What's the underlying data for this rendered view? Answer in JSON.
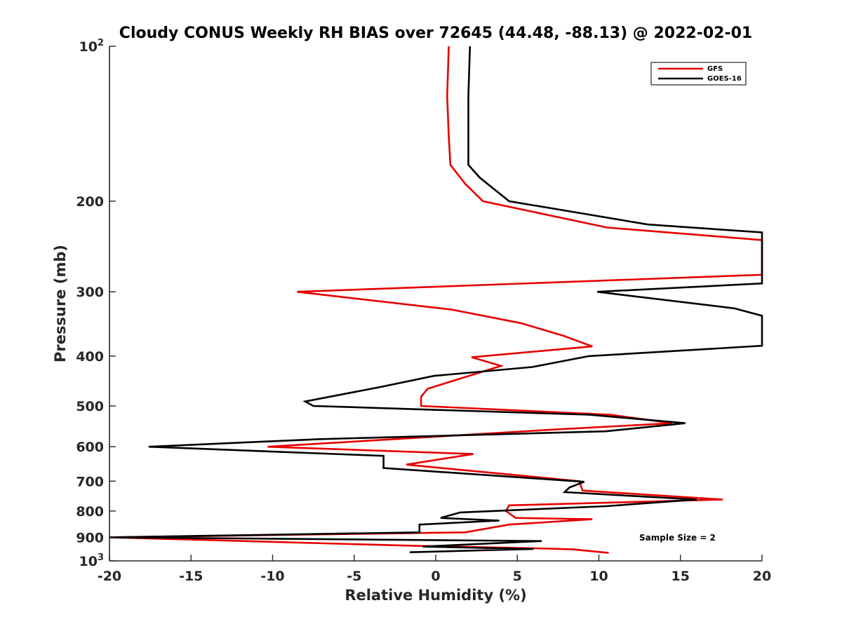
{
  "chart_data": {
    "type": "line",
    "title": "Cloudy CONUS Weekly RH BIAS over 72645 (44.48, -88.13) @ 2022-02-01",
    "xlabel": "Relative Humidity (%)",
    "ylabel": "Pressure (mb)",
    "xlim": [
      -20,
      20
    ],
    "ylim": [
      100,
      1000
    ],
    "yscale": "log",
    "y_reversed": true,
    "grid": false,
    "legend_position": "top-right",
    "x_ticks": [
      "-20",
      "-15",
      "-10",
      "-5",
      "0",
      "5",
      "10",
      "15",
      "20"
    ],
    "y_ticks": [
      {
        "value": 100,
        "base": "10",
        "exp": "2"
      },
      {
        "value": 200,
        "label": "200"
      },
      {
        "value": 300,
        "label": "300"
      },
      {
        "value": 400,
        "label": "400"
      },
      {
        "value": 500,
        "label": "500"
      },
      {
        "value": 600,
        "label": "600"
      },
      {
        "value": 700,
        "label": "700"
      },
      {
        "value": 800,
        "label": "800"
      },
      {
        "value": 900,
        "label": "900"
      },
      {
        "value": 1000,
        "base": "10",
        "exp": "3"
      }
    ],
    "series": [
      {
        "name": "GFS",
        "color": "#e60000",
        "points": [
          [
            0.8,
            100
          ],
          [
            0.7,
            125
          ],
          [
            0.8,
            150
          ],
          [
            0.9,
            170
          ],
          [
            1.8,
            185
          ],
          [
            2.9,
            200
          ],
          [
            10.5,
            225
          ],
          [
            20,
            238
          ],
          [
            20,
            278
          ],
          [
            -8.5,
            300
          ],
          [
            1,
            325
          ],
          [
            5.2,
            345
          ],
          [
            7.8,
            365
          ],
          [
            9.6,
            383
          ],
          [
            2.2,
            402
          ],
          [
            4,
            418
          ],
          [
            -0.5,
            463
          ],
          [
            -0.9,
            480
          ],
          [
            -0.9,
            500
          ],
          [
            10.7,
            520
          ],
          [
            14.5,
            540
          ],
          [
            7.5,
            555
          ],
          [
            -10.3,
            600
          ],
          [
            2.3,
            620
          ],
          [
            -1.8,
            650
          ],
          [
            8.8,
            700
          ],
          [
            9,
            730
          ],
          [
            17.6,
            760
          ],
          [
            4.5,
            780
          ],
          [
            4.3,
            800
          ],
          [
            4.9,
            825
          ],
          [
            9.6,
            830
          ],
          [
            4.5,
            850
          ],
          [
            1.8,
            880
          ],
          [
            -20,
            900
          ],
          [
            -1.2,
            935
          ],
          [
            6.1,
            945
          ],
          [
            8.4,
            950
          ],
          [
            10.6,
            965
          ]
        ]
      },
      {
        "name": "GOES-16",
        "color": "#000000",
        "points": [
          [
            2.1,
            100
          ],
          [
            2,
            125
          ],
          [
            2,
            150
          ],
          [
            2,
            170
          ],
          [
            2.7,
            180
          ],
          [
            4.5,
            200
          ],
          [
            13,
            222
          ],
          [
            20,
            230
          ],
          [
            20,
            289
          ],
          [
            9.9,
            300
          ],
          [
            18.3,
            323
          ],
          [
            20,
            334
          ],
          [
            20,
            382
          ],
          [
            9.4,
            400
          ],
          [
            5.9,
            420
          ],
          [
            -0.1,
            437
          ],
          [
            -3.5,
            460
          ],
          [
            -8,
            490
          ],
          [
            -7.5,
            500
          ],
          [
            9.4,
            520
          ],
          [
            15.3,
            540
          ],
          [
            10.4,
            560
          ],
          [
            -7.2,
            580
          ],
          [
            -17.6,
            600
          ],
          [
            -3.2,
            625
          ],
          [
            -3.2,
            645
          ],
          [
            -3.2,
            660
          ],
          [
            9.1,
            702
          ],
          [
            8.2,
            720
          ],
          [
            7.9,
            735
          ],
          [
            16,
            760
          ],
          [
            10.4,
            783
          ],
          [
            1.5,
            805
          ],
          [
            0.3,
            825
          ],
          [
            3.9,
            835
          ],
          [
            -1,
            850
          ],
          [
            -1,
            880
          ],
          [
            -20,
            900
          ],
          [
            6.5,
            915
          ],
          [
            -0.8,
            938
          ],
          [
            6,
            948
          ],
          [
            -1.6,
            962
          ]
        ]
      }
    ],
    "annotations": [
      "Sample Size = 2"
    ]
  }
}
